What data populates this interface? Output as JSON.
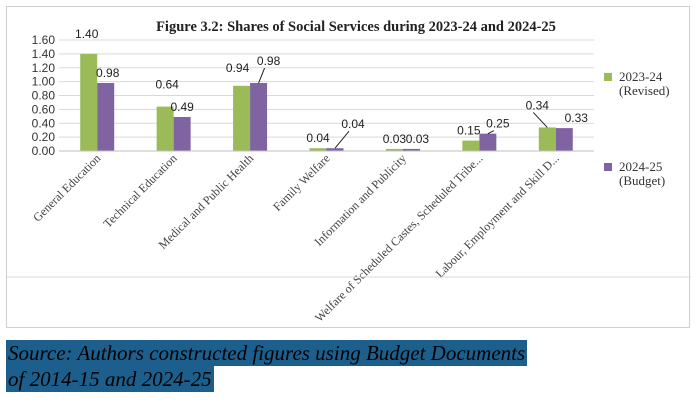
{
  "source": {
    "line1": "Source: Authors constructed figures using Budget Documents",
    "line2": "of 2014-15 and 2024-25"
  },
  "colors": {
    "series1": "#9bbb59",
    "series2": "#8064a2",
    "grid": "#d9d9d9"
  },
  "chart_data": {
    "type": "bar",
    "title": "Figure 3.2: Shares of Social Services during 2023-24 and 2024-25",
    "categories": [
      "General Education",
      "Technical Education",
      "Medical and Public Health",
      "Family Welfare",
      "Information and Publicity",
      "Welfare of Scheduled Castes, Scheduled Tribe...",
      "Labour, Employment and Skill D..."
    ],
    "series": [
      {
        "name": "2023-24 (Revised)",
        "legend_lines": [
          "2023-24",
          "(Revised)"
        ],
        "values": [
          1.4,
          0.64,
          0.94,
          0.04,
          0.03,
          0.15,
          0.34
        ]
      },
      {
        "name": "2024-25 (Budget)",
        "legend_lines": [
          "2024-25",
          "(Budget)"
        ],
        "values": [
          0.98,
          0.49,
          0.98,
          0.04,
          0.03,
          0.25,
          0.33
        ]
      }
    ],
    "value_labels": [
      [
        "1.40",
        "0.64",
        "0.94",
        "0.04",
        "0.03",
        "0.15",
        "0.34"
      ],
      [
        "0.98",
        "0.49",
        "0.98",
        "0.04",
        "0.03",
        "0.25",
        "0.33"
      ]
    ],
    "yticks": [
      "0.00",
      "0.20",
      "0.40",
      "0.60",
      "0.80",
      "1.00",
      "1.20",
      "1.40",
      "1.60"
    ],
    "ylim": [
      0,
      1.6
    ],
    "xlabel": "",
    "ylabel": "",
    "grid": true,
    "legend_position": "right"
  }
}
